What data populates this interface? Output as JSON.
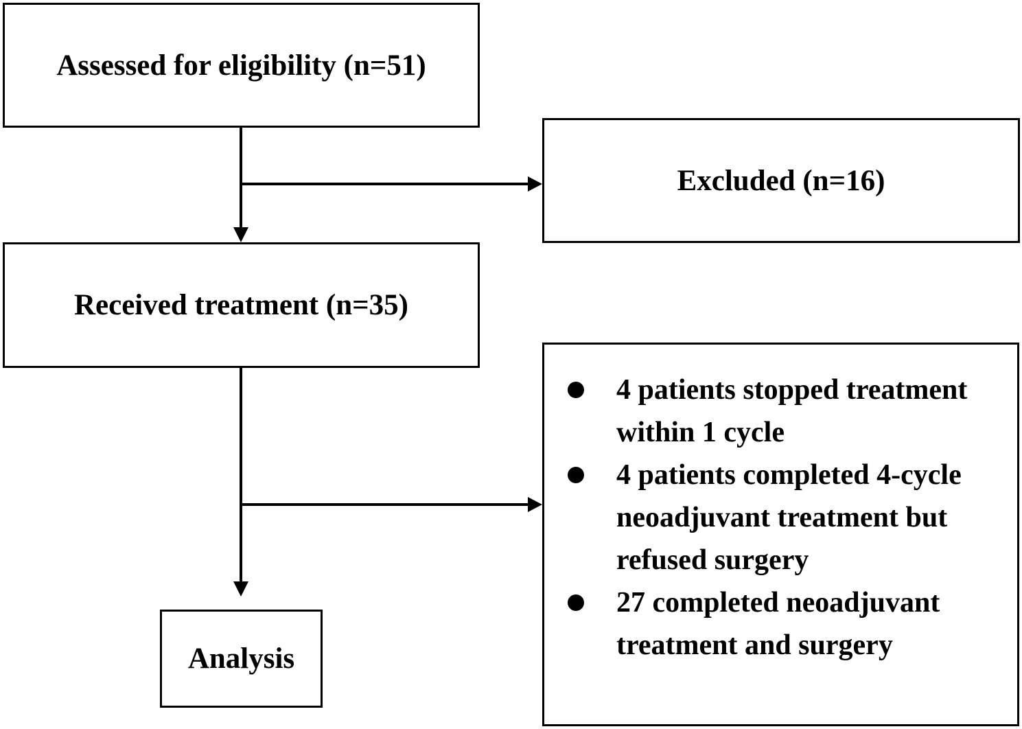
{
  "boxes": {
    "assessed": "Assessed for eligibility (n=51)",
    "excluded": "Excluded (n=16)",
    "received": "Received treatment (n=35)",
    "analysis": "Analysis"
  },
  "outcomes": [
    "4 patients stopped treatment within 1 cycle",
    "4 patients completed 4-cycle neoadjuvant treatment but refused surgery",
    "27 completed neoadjuvant treatment and surgery"
  ]
}
